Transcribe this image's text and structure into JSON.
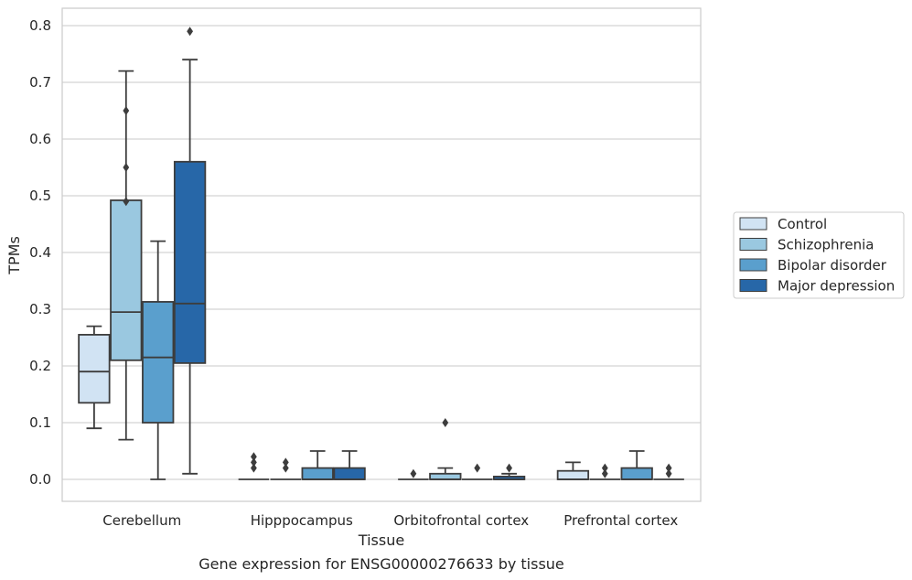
{
  "chart_data": {
    "type": "box",
    "xlabel": "Tissue",
    "ylabel": "TPMs",
    "caption": "Gene expression for ENSG00000276633 by tissue",
    "ylim": [
      -0.04,
      0.83
    ],
    "yticks": [
      "0.0",
      "0.1",
      "0.2",
      "0.3",
      "0.4",
      "0.5",
      "0.6",
      "0.7",
      "0.8"
    ],
    "grid": true,
    "legend_position": "right",
    "categories": [
      "Cerebellum",
      "Hipppocampus",
      "Orbitofrontal cortex",
      "Prefrontal cortex"
    ],
    "series": [
      {
        "name": "Control",
        "color": "#d1e3f3",
        "boxes": [
          {
            "whislo": 0.09,
            "q1": 0.135,
            "med": 0.19,
            "q3": 0.255,
            "whishi": 0.27,
            "fliers": []
          },
          {
            "whislo": 0.0,
            "q1": 0.0,
            "med": 0.0,
            "q3": 0.0,
            "whishi": 0.0,
            "fliers": [
              0.02,
              0.03,
              0.04
            ]
          },
          {
            "whislo": 0.0,
            "q1": 0.0,
            "med": 0.0,
            "q3": 0.0,
            "whishi": 0.0,
            "fliers": [
              0.01
            ]
          },
          {
            "whislo": 0.0,
            "q1": 0.0,
            "med": 0.0,
            "q3": 0.015,
            "whishi": 0.03,
            "fliers": []
          }
        ]
      },
      {
        "name": "Schizophrenia",
        "color": "#9ac8e0",
        "boxes": [
          {
            "whislo": 0.07,
            "q1": 0.21,
            "med": 0.295,
            "q3": 0.492,
            "whishi": 0.72,
            "fliers": [
              0.49,
              0.55,
              0.65
            ]
          },
          {
            "whislo": 0.0,
            "q1": 0.0,
            "med": 0.0,
            "q3": 0.0,
            "whishi": 0.0,
            "fliers": [
              0.02,
              0.03
            ]
          },
          {
            "whislo": 0.0,
            "q1": 0.0,
            "med": 0.0,
            "q3": 0.01,
            "whishi": 0.02,
            "fliers": [
              0.1
            ]
          },
          {
            "whislo": 0.0,
            "q1": 0.0,
            "med": 0.0,
            "q3": 0.0,
            "whishi": 0.0,
            "fliers": [
              0.01,
              0.02
            ]
          }
        ]
      },
      {
        "name": "Bipolar disorder",
        "color": "#5a9fcd",
        "boxes": [
          {
            "whislo": 0.0,
            "q1": 0.1,
            "med": 0.215,
            "q3": 0.313,
            "whishi": 0.42,
            "fliers": []
          },
          {
            "whislo": 0.0,
            "q1": 0.0,
            "med": 0.0,
            "q3": 0.02,
            "whishi": 0.05,
            "fliers": []
          },
          {
            "whislo": 0.0,
            "q1": 0.0,
            "med": 0.0,
            "q3": 0.0,
            "whishi": 0.0,
            "fliers": [
              0.02
            ]
          },
          {
            "whislo": 0.0,
            "q1": 0.0,
            "med": 0.0,
            "q3": 0.02,
            "whishi": 0.05,
            "fliers": []
          }
        ]
      },
      {
        "name": "Major depression",
        "color": "#2767a8",
        "boxes": [
          {
            "whislo": 0.01,
            "q1": 0.205,
            "med": 0.31,
            "q3": 0.56,
            "whishi": 0.74,
            "fliers": [
              0.79
            ]
          },
          {
            "whislo": 0.0,
            "q1": 0.0,
            "med": 0.0,
            "q3": 0.02,
            "whishi": 0.05,
            "fliers": []
          },
          {
            "whislo": 0.0,
            "q1": 0.0,
            "med": 0.0,
            "q3": 0.005,
            "whishi": 0.01,
            "fliers": [
              0.02
            ]
          },
          {
            "whislo": 0.0,
            "q1": 0.0,
            "med": 0.0,
            "q3": 0.0,
            "whishi": 0.0,
            "fliers": [
              0.01,
              0.02
            ]
          }
        ]
      }
    ]
  }
}
